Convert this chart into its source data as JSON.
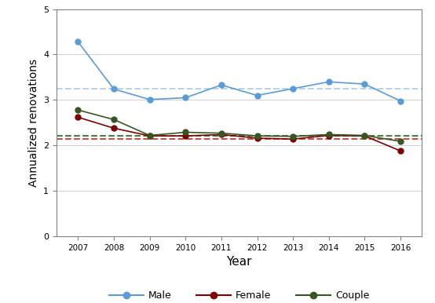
{
  "years": [
    2007,
    2008,
    2009,
    2010,
    2011,
    2012,
    2013,
    2014,
    2015,
    2016
  ],
  "male": [
    4.28,
    3.24,
    3.01,
    3.05,
    3.33,
    3.1,
    3.25,
    3.4,
    3.35,
    2.98
  ],
  "female": [
    2.62,
    2.38,
    2.21,
    2.21,
    2.24,
    2.16,
    2.14,
    2.22,
    2.21,
    1.88
  ],
  "couple": [
    2.78,
    2.57,
    2.22,
    2.29,
    2.27,
    2.21,
    2.2,
    2.24,
    2.22,
    2.09
  ],
  "male_mean": 3.24,
  "female_mean": 2.14,
  "couple_mean": 2.22,
  "male_color": "#5B9BD5",
  "female_color": "#7B0000",
  "couple_color": "#375623",
  "male_mean_color": "#B8D3E8",
  "female_mean_color": "#C0504D",
  "couple_mean_color": "#4E7C3F",
  "ylabel": "Annualized renovations",
  "xlabel": "Year",
  "ylim": [
    0,
    5
  ],
  "yticks": [
    0,
    1,
    2,
    3,
    4,
    5
  ],
  "bg_color": "#FFFFFF",
  "grid_color": "#D0D0D0",
  "spine_color": "#808080",
  "tick_label_fontsize": 7.5,
  "axis_label_fontsize": 10
}
